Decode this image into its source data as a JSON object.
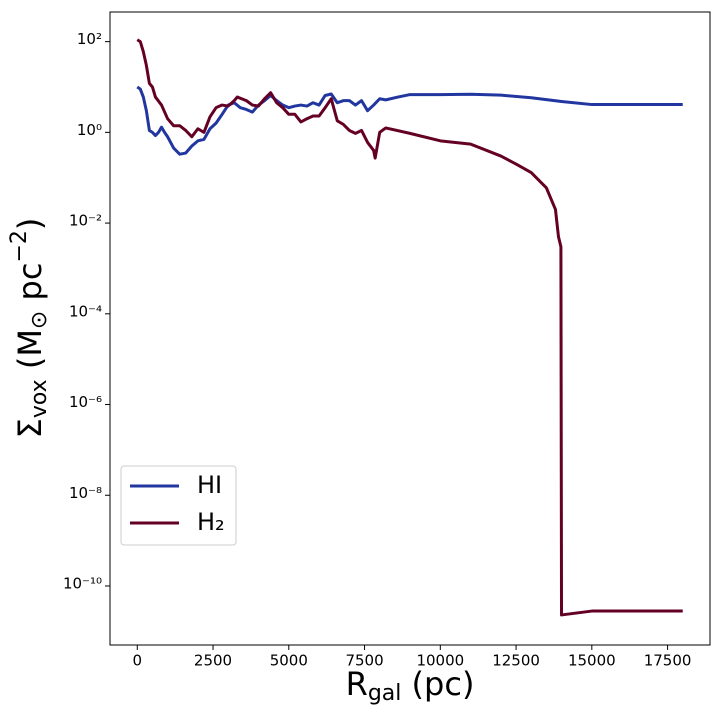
{
  "chart_data": {
    "type": "line",
    "log_y": true,
    "xlabel": {
      "main": "R",
      "sub": "gal",
      "rest": " (pc)"
    },
    "ylabel": {
      "main": "Σ",
      "sub": "vox",
      "mid": " (M",
      "sub2": "⊙",
      "mid2": " pc",
      "sup": "−2",
      "end": ")"
    },
    "xlim": [
      -900,
      18900
    ],
    "xticks": [
      0,
      2500,
      5000,
      7500,
      10000,
      12500,
      15000,
      17500
    ],
    "ylim": [
      5e-12,
      450
    ],
    "yticks": [
      {
        "value": 1e-10,
        "label": "10⁻¹⁰"
      },
      {
        "value": 1e-08,
        "label": "10⁻⁸"
      },
      {
        "value": 1e-06,
        "label": "10⁻⁶"
      },
      {
        "value": 0.0001,
        "label": "10⁻⁴"
      },
      {
        "value": 0.01,
        "label": "10⁻²"
      },
      {
        "value": 1,
        "label": "10⁰"
      },
      {
        "value": 100,
        "label": "10²"
      }
    ],
    "legend_position": "lower left",
    "series": [
      {
        "name": "HI",
        "color": "#2236a0",
        "x": [
          0,
          100,
          200,
          300,
          400,
          500,
          600,
          700,
          800,
          900,
          1000,
          1200,
          1400,
          1600,
          1800,
          2000,
          2200,
          2400,
          2600,
          2800,
          3000,
          3200,
          3400,
          3600,
          3800,
          4000,
          4200,
          4400,
          4600,
          4800,
          5000,
          5200,
          5400,
          5600,
          5800,
          6000,
          6200,
          6400,
          6600,
          6800,
          7000,
          7200,
          7400,
          7600,
          7800,
          8000,
          8200,
          8600,
          9000,
          10000,
          11000,
          12000,
          13000,
          14000,
          15000,
          16000,
          17000,
          18000
        ],
        "values": [
          10,
          9,
          6,
          3,
          1.1,
          1.0,
          0.85,
          1.0,
          1.3,
          1.0,
          0.8,
          0.45,
          0.33,
          0.35,
          0.5,
          0.65,
          0.7,
          1.2,
          1.6,
          2.5,
          4,
          4.5,
          3.5,
          3.2,
          2.8,
          4,
          5,
          6.5,
          5,
          4,
          3.5,
          3.8,
          4,
          3.8,
          4.5,
          4,
          6.5,
          7,
          4.5,
          5,
          5,
          4,
          5,
          3,
          4,
          5.5,
          5.2,
          6,
          6.8,
          6.8,
          6.9,
          6.6,
          5.8,
          4.8,
          4.1,
          4.1,
          4.1,
          4.1
        ]
      },
      {
        "name": "H₂",
        "color": "#650025",
        "x": [
          0,
          100,
          200,
          300,
          400,
          500,
          600,
          800,
          1000,
          1200,
          1400,
          1600,
          1800,
          2000,
          2200,
          2400,
          2600,
          2800,
          3000,
          3200,
          3300,
          3600,
          3800,
          4000,
          4200,
          4400,
          4600,
          4800,
          5000,
          5200,
          5400,
          5600,
          5800,
          6000,
          6200,
          6400,
          6600,
          6800,
          7000,
          7200,
          7400,
          7600,
          7800,
          7850,
          8000,
          8200,
          9000,
          10000,
          11000,
          12000,
          12500,
          13000,
          13500,
          13800,
          13900,
          13980,
          14000,
          15000,
          16000,
          18000
        ],
        "values": [
          110,
          100,
          60,
          30,
          12,
          10,
          6,
          4,
          2,
          1.4,
          1.4,
          1.1,
          0.8,
          1.2,
          1.0,
          2.2,
          3.5,
          4,
          3.8,
          5,
          6,
          5,
          4,
          3.8,
          5.5,
          7.5,
          4.5,
          3.5,
          2.5,
          2.5,
          1.7,
          2,
          2.3,
          2.3,
          3.5,
          5.5,
          1.8,
          1.5,
          1.1,
          0.95,
          1.1,
          0.6,
          0.4,
          0.27,
          1.0,
          1.25,
          0.95,
          0.65,
          0.55,
          0.3,
          0.2,
          0.13,
          0.06,
          0.02,
          0.005,
          0.003,
          2.3e-11,
          2.8e-11,
          2.8e-11,
          2.8e-11
        ]
      }
    ]
  }
}
